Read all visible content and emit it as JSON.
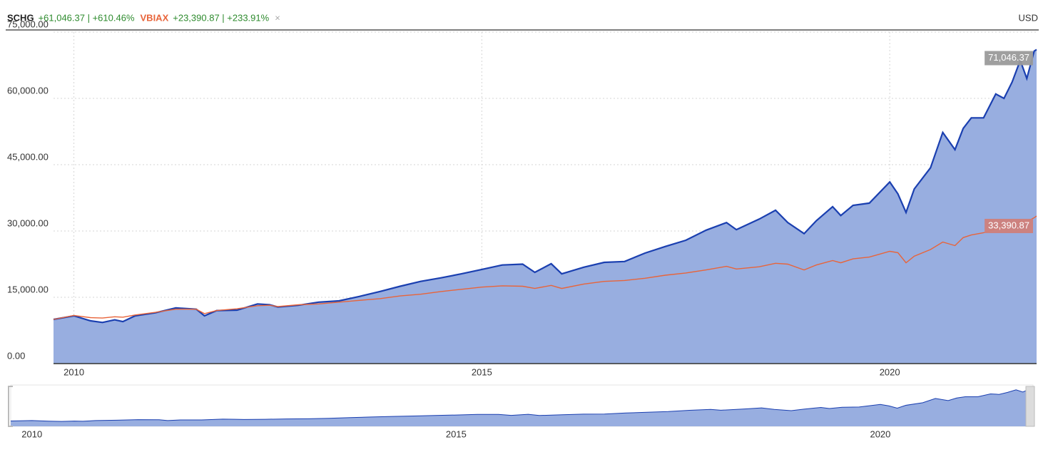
{
  "chart_data": {
    "type": "area-line",
    "currency": "USD",
    "close_symbol": "×",
    "x": [
      2009.75,
      2010.0,
      2010.2,
      2010.35,
      2010.5,
      2010.6,
      2010.75,
      2011.0,
      2011.25,
      2011.5,
      2011.6,
      2011.75,
      2012.0,
      2012.25,
      2012.4,
      2012.5,
      2012.75,
      2013.0,
      2013.25,
      2013.5,
      2013.75,
      2014.0,
      2014.25,
      2014.5,
      2014.75,
      2015.0,
      2015.25,
      2015.5,
      2015.65,
      2015.85,
      2015.98,
      2016.25,
      2016.5,
      2016.75,
      2017.0,
      2017.25,
      2017.5,
      2017.75,
      2018.0,
      2018.12,
      2018.4,
      2018.6,
      2018.75,
      2018.95,
      2019.1,
      2019.3,
      2019.4,
      2019.55,
      2019.75,
      2020.0,
      2020.1,
      2020.2,
      2020.3,
      2020.5,
      2020.65,
      2020.8,
      2020.9,
      2021.0,
      2021.15,
      2021.3,
      2021.4,
      2021.5,
      2021.6,
      2021.68,
      2021.77,
      2021.8
    ],
    "series": [
      {
        "name": "SCHG",
        "summary": "+61,046.37 | +610.46%",
        "color": "#1a3fb0",
        "fill": "#98aee0",
        "area": true,
        "last_value_label": "71,046.37",
        "values": [
          10000,
          10800,
          9700,
          9300,
          9900,
          9500,
          10800,
          11500,
          12600,
          12300,
          10800,
          12000,
          12100,
          13500,
          13300,
          12800,
          13200,
          13900,
          14200,
          15200,
          16300,
          17500,
          18600,
          19400,
          20300,
          21300,
          22300,
          22500,
          20650,
          22600,
          20300,
          21800,
          22900,
          23100,
          25000,
          26500,
          27900,
          30200,
          31900,
          30300,
          32700,
          34700,
          31900,
          29400,
          32300,
          35500,
          33500,
          35800,
          36300,
          41100,
          38400,
          34200,
          39500,
          44300,
          52300,
          48400,
          53200,
          55600,
          55600,
          61000,
          60000,
          63700,
          68600,
          64500,
          70700,
          71046.37
        ]
      },
      {
        "name": "VBIAX",
        "summary": "+23,390.87 | +233.91%",
        "color": "#e8643a",
        "area": false,
        "last_value_label": "33,390.87",
        "values": [
          10000,
          10900,
          10400,
          10300,
          10600,
          10500,
          11000,
          11600,
          12300,
          12300,
          11300,
          12000,
          12400,
          13100,
          13200,
          12900,
          13300,
          13500,
          13900,
          14300,
          14700,
          15300,
          15700,
          16300,
          16800,
          17300,
          17600,
          17500,
          17000,
          17700,
          17000,
          18000,
          18600,
          18800,
          19300,
          20000,
          20500,
          21200,
          22000,
          21400,
          21900,
          22700,
          22500,
          21200,
          22300,
          23300,
          22800,
          23700,
          24100,
          25400,
          25100,
          22800,
          24300,
          25800,
          27500,
          26700,
          28500,
          29100,
          29600,
          30500,
          30700,
          31500,
          32200,
          32100,
          33000,
          33390.87
        ]
      }
    ],
    "xlim": [
      2009.75,
      2021.8
    ],
    "xticks": [
      2010,
      2015,
      2020
    ],
    "ylim": [
      0,
      75000
    ],
    "yticks": [
      {
        "value": 0,
        "label": "0.00"
      },
      {
        "value": 15000,
        "label": "15,000.00"
      },
      {
        "value": 30000,
        "label": "30,000.00"
      },
      {
        "value": 45000,
        "label": "45,000.00"
      },
      {
        "value": 60000,
        "label": "60,000.00"
      },
      {
        "value": 75000,
        "label": "75,000.00"
      }
    ],
    "grid": true,
    "navigator": true
  }
}
